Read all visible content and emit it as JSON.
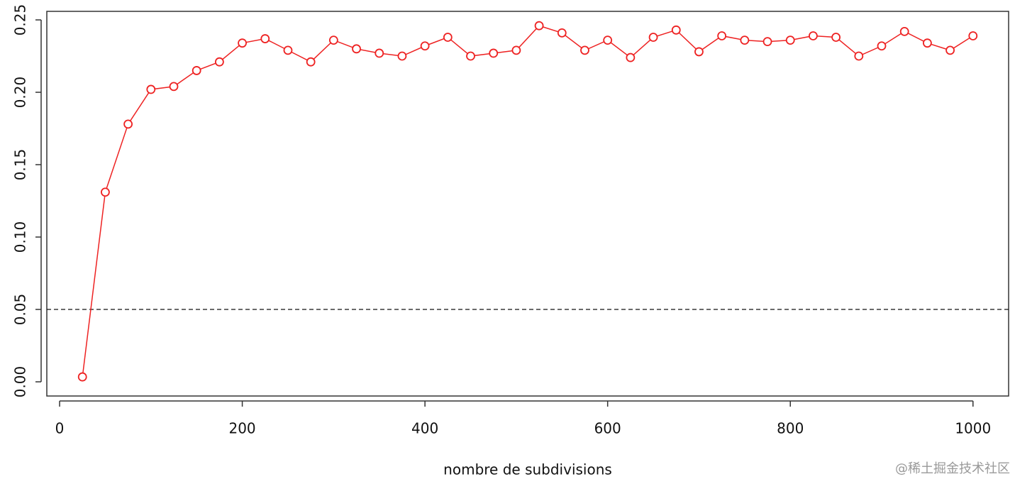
{
  "chart_data": {
    "type": "line",
    "xlabel": "nombre de subdivisions",
    "x": [
      25,
      50,
      75,
      100,
      125,
      150,
      175,
      200,
      225,
      250,
      275,
      300,
      325,
      350,
      375,
      400,
      425,
      450,
      475,
      500,
      525,
      550,
      575,
      600,
      625,
      650,
      675,
      700,
      725,
      750,
      775,
      800,
      825,
      850,
      875,
      900,
      925,
      950,
      975,
      1000
    ],
    "series": [
      {
        "color": "#ee2222",
        "values": [
          0.0034,
          0.131,
          0.178,
          0.202,
          0.204,
          0.215,
          0.221,
          0.234,
          0.237,
          0.229,
          0.221,
          0.236,
          0.23,
          0.227,
          0.225,
          0.232,
          0.238,
          0.225,
          0.227,
          0.229,
          0.246,
          0.241,
          0.229,
          0.236,
          0.224,
          0.238,
          0.243,
          0.228,
          0.239,
          0.236,
          0.235,
          0.236,
          0.239,
          0.238,
          0.225,
          0.232,
          0.242,
          0.234,
          0.229,
          0.239
        ]
      }
    ],
    "xlim": [
      -14,
      1039
    ],
    "ylim": [
      -0.0098,
      0.2559
    ],
    "xticks": [
      0,
      200,
      400,
      600,
      800,
      1000
    ],
    "yticks": [
      {
        "value": 0,
        "label": "0.00"
      },
      {
        "value": 0.05,
        "label": "0.05"
      },
      {
        "value": 0.1,
        "label": "0.10"
      },
      {
        "value": 0.15,
        "label": "0.15"
      },
      {
        "value": 0.2,
        "label": "0.20"
      },
      {
        "value": 0.25,
        "label": "0.25"
      }
    ],
    "hline": 0.05,
    "watermark": "@稀土掘金技术社区"
  }
}
